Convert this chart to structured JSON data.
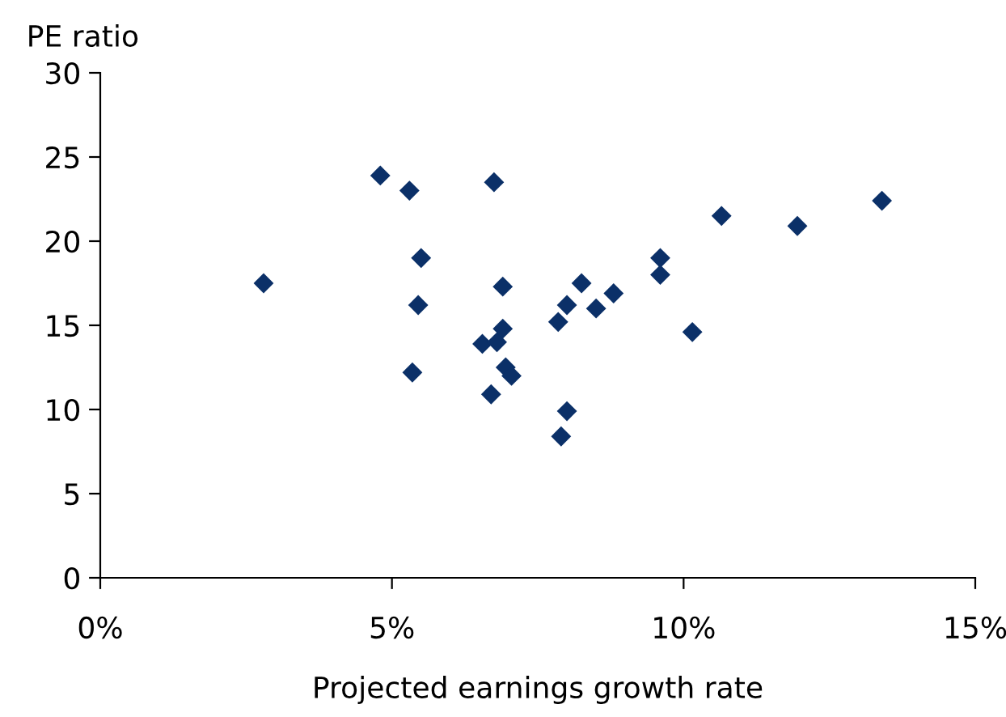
{
  "chart_data": {
    "type": "scatter",
    "ylabel": "PE ratio",
    "xlabel": "Projected earnings growth rate",
    "x": [
      2.8,
      4.8,
      5.3,
      6.75,
      5.5,
      5.45,
      5.35,
      6.9,
      6.55,
      6.8,
      6.9,
      6.95,
      7.05,
      6.7,
      7.9,
      8.0,
      7.85,
      8.0,
      8.25,
      8.5,
      8.8,
      9.6,
      9.6,
      10.15,
      10.65,
      11.95,
      13.4
    ],
    "values": [
      17.5,
      23.9,
      23.0,
      23.5,
      19.0,
      16.2,
      12.2,
      17.3,
      13.9,
      14.0,
      14.8,
      12.5,
      12.0,
      10.9,
      8.4,
      9.9,
      15.2,
      16.2,
      17.5,
      16.0,
      16.9,
      19.0,
      18.0,
      14.6,
      21.5,
      20.9,
      22.4
    ],
    "color": "#0b3068",
    "marker": "diamond",
    "grid": false,
    "legend": false,
    "xlim": [
      0,
      15
    ],
    "xticks": [
      {
        "value": 0,
        "label": "0%"
      },
      {
        "value": 5,
        "label": "5%"
      },
      {
        "value": 10,
        "label": "10%"
      },
      {
        "value": 15,
        "label": "15%"
      }
    ],
    "ylim": [
      0,
      30
    ],
    "yticks": [
      0,
      5,
      10,
      15,
      20,
      25,
      30
    ]
  }
}
